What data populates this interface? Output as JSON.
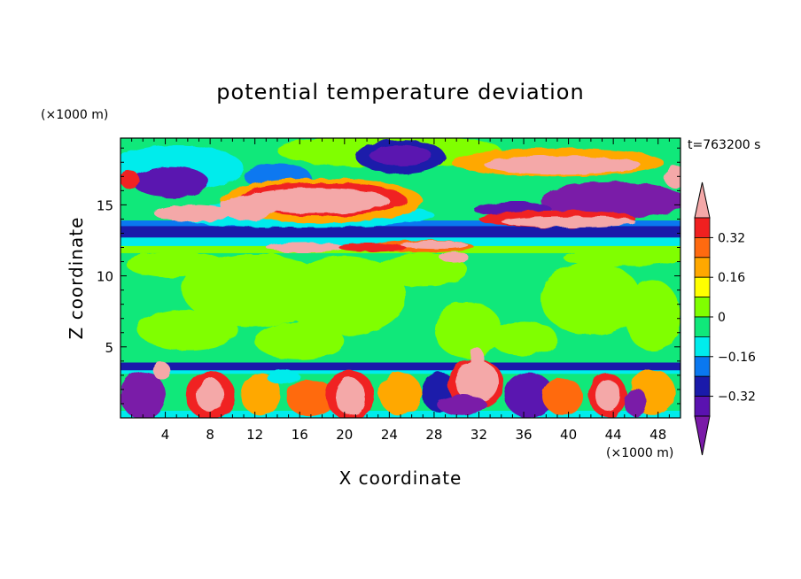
{
  "chart_data": {
    "type": "heatmap",
    "title": "potential temperature deviation",
    "xlabel": "X coordinate",
    "ylabel": "Z coordinate",
    "x_units": "(×1000 m)",
    "y_units": "(×1000 m)",
    "time_label": "t=763200 s",
    "xlim": [
      0,
      50
    ],
    "ylim": [
      0,
      19.7
    ],
    "x_ticks": [
      4,
      8,
      12,
      16,
      20,
      24,
      28,
      32,
      36,
      40,
      44,
      48
    ],
    "y_ticks": [
      5,
      10,
      15
    ],
    "colorbar": {
      "tick_values": [
        0.32,
        0.16,
        0,
        -0.16,
        -0.32
      ],
      "tick_labels": [
        "0.32",
        "0.16",
        "0",
        "−0.16",
        "−0.32"
      ],
      "levels": [
        {
          "lo": 0.4,
          "hi": null,
          "color": "#f4a8a8"
        },
        {
          "lo": 0.32,
          "hi": 0.4,
          "color": "#f02020"
        },
        {
          "lo": 0.24,
          "hi": 0.32,
          "color": "#ff6a10"
        },
        {
          "lo": 0.16,
          "hi": 0.24,
          "color": "#ffa800"
        },
        {
          "lo": 0.08,
          "hi": 0.16,
          "color": "#ffff00"
        },
        {
          "lo": 0,
          "hi": 0.08,
          "color": "#80ff00"
        },
        {
          "lo": -0.08,
          "hi": 0,
          "color": "#10e87a"
        },
        {
          "lo": -0.16,
          "hi": -0.08,
          "color": "#00ecec"
        },
        {
          "lo": -0.24,
          "hi": -0.16,
          "color": "#0a78f0"
        },
        {
          "lo": -0.32,
          "hi": -0.24,
          "color": "#1a1aaa"
        },
        {
          "lo": -0.4,
          "hi": -0.32,
          "color": "#5a12b0"
        },
        {
          "lo": null,
          "hi": -0.4,
          "color": "#7a1aa8"
        }
      ]
    },
    "field_regions": [
      {
        "feature": "upper-left green layer",
        "x": [
          0,
          12
        ],
        "z": [
          18.5,
          19.7
        ],
        "value": 0.02
      },
      {
        "feature": "purple cells top-left",
        "x": [
          1.5,
          9
        ],
        "z": [
          16,
          17.5
        ],
        "value": -0.45
      },
      {
        "feature": "warm anomaly layer (pink core)",
        "x": [
          9,
          28
        ],
        "z": [
          14.5,
          17
        ],
        "value": 0.45
      },
      {
        "feature": "pink band",
        "x": [
          4,
          47
        ],
        "z": [
          13.2,
          15
        ],
        "value": 0.45
      },
      {
        "feature": "purple band right",
        "x": [
          32,
          50
        ],
        "z": [
          14.5,
          16.5
        ],
        "value": -0.45
      },
      {
        "feature": "orange/pink streak top-right",
        "x": [
          34,
          48
        ],
        "z": [
          16.5,
          18.6
        ],
        "value": 0.45
      },
      {
        "feature": "cold band",
        "x": [
          0,
          50
        ],
        "z": [
          12.7,
          13.5
        ],
        "value": -0.28
      },
      {
        "feature": "cyan band",
        "x": [
          0,
          50
        ],
        "z": [
          12.1,
          12.7
        ],
        "value": -0.12
      },
      {
        "feature": "pink filaments",
        "x": [
          22,
          34
        ],
        "z": [
          11,
          12.8
        ],
        "value": 0.45
      },
      {
        "feature": "mid-troposphere light green plumes",
        "x": [
          2,
          50
        ],
        "z": [
          5,
          11.5
        ],
        "value": 0.02
      },
      {
        "feature": "mid-troposphere green background",
        "x": [
          0,
          50
        ],
        "z": [
          3.8,
          12
        ],
        "value": -0.04
      },
      {
        "feature": "boundary layer cold lid",
        "x": [
          0,
          50
        ],
        "z": [
          3.3,
          3.8
        ],
        "value": -0.28
      },
      {
        "feature": "boundary layer convective cells",
        "x": [
          0,
          50
        ],
        "z": [
          0,
          3.3
        ],
        "value": 0.3
      },
      {
        "feature": "pink plume near x=32",
        "x": [
          29.5,
          34
        ],
        "z": [
          1.8,
          4.5
        ],
        "value": 0.45
      },
      {
        "feature": "pink cell near x=44",
        "x": [
          42.5,
          44.5
        ],
        "z": [
          0.6,
          2.6
        ],
        "value": 0.45
      }
    ]
  }
}
